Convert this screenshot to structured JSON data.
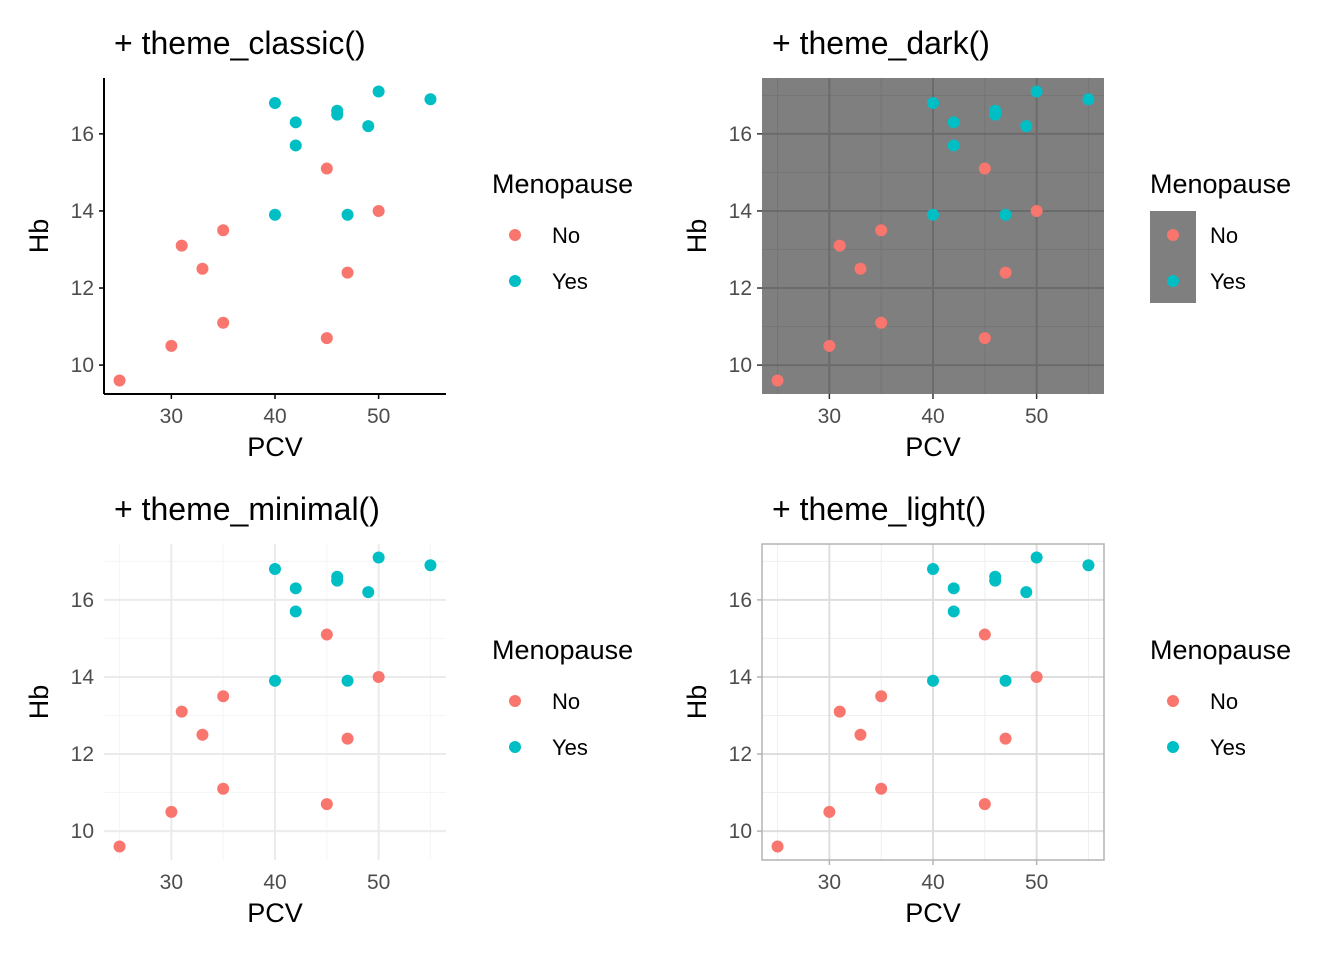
{
  "colors": {
    "No": "#F8766D",
    "Yes": "#00BFC4"
  },
  "chart_data": [
    {
      "type": "scatter",
      "title": "+ theme_classic()",
      "theme": "classic",
      "xlabel": "PCV",
      "ylabel": "Hb",
      "xlim": [
        23.5,
        56.5
      ],
      "ylim": [
        9.25,
        17.45
      ],
      "xticks": [
        30,
        40,
        50
      ],
      "yticks": [
        10,
        12,
        14,
        16
      ],
      "grid": false,
      "legend": {
        "title": "Menopause",
        "position": "right",
        "entries": [
          "No",
          "Yes"
        ]
      },
      "series": [
        {
          "name": "No",
          "color": "#F8766D",
          "points": [
            [
              25,
              9.6
            ],
            [
              30,
              10.5
            ],
            [
              31,
              13.1
            ],
            [
              33,
              12.5
            ],
            [
              35,
              11.1
            ],
            [
              35,
              13.5
            ],
            [
              45,
              10.7
            ],
            [
              45,
              15.1
            ],
            [
              47,
              12.4
            ],
            [
              50,
              14.0
            ]
          ]
        },
        {
          "name": "Yes",
          "color": "#00BFC4",
          "points": [
            [
              40,
              13.9
            ],
            [
              40,
              16.8
            ],
            [
              42,
              15.7
            ],
            [
              42,
              16.3
            ],
            [
              46,
              16.5
            ],
            [
              46,
              16.6
            ],
            [
              47,
              13.9
            ],
            [
              49,
              16.2
            ],
            [
              50,
              17.1
            ],
            [
              55,
              16.9
            ]
          ]
        }
      ]
    },
    {
      "type": "scatter",
      "title": "+ theme_dark()",
      "theme": "dark",
      "xlabel": "PCV",
      "ylabel": "Hb",
      "xlim": [
        23.5,
        56.5
      ],
      "ylim": [
        9.25,
        17.45
      ],
      "xticks": [
        30,
        40,
        50
      ],
      "yticks": [
        10,
        12,
        14,
        16
      ],
      "grid": true,
      "legend": {
        "title": "Menopause",
        "position": "right",
        "entries": [
          "No",
          "Yes"
        ]
      },
      "series": [
        {
          "name": "No",
          "color": "#F8766D",
          "points": [
            [
              25,
              9.6
            ],
            [
              30,
              10.5
            ],
            [
              31,
              13.1
            ],
            [
              33,
              12.5
            ],
            [
              35,
              11.1
            ],
            [
              35,
              13.5
            ],
            [
              45,
              10.7
            ],
            [
              45,
              15.1
            ],
            [
              47,
              12.4
            ],
            [
              50,
              14.0
            ]
          ]
        },
        {
          "name": "Yes",
          "color": "#00BFC4",
          "points": [
            [
              40,
              13.9
            ],
            [
              40,
              16.8
            ],
            [
              42,
              15.7
            ],
            [
              42,
              16.3
            ],
            [
              46,
              16.5
            ],
            [
              46,
              16.6
            ],
            [
              47,
              13.9
            ],
            [
              49,
              16.2
            ],
            [
              50,
              17.1
            ],
            [
              55,
              16.9
            ]
          ]
        }
      ]
    },
    {
      "type": "scatter",
      "title": "+ theme_minimal()",
      "theme": "minimal",
      "xlabel": "PCV",
      "ylabel": "Hb",
      "xlim": [
        23.5,
        56.5
      ],
      "ylim": [
        9.25,
        17.45
      ],
      "xticks": [
        30,
        40,
        50
      ],
      "yticks": [
        10,
        12,
        14,
        16
      ],
      "grid": true,
      "legend": {
        "title": "Menopause",
        "position": "right",
        "entries": [
          "No",
          "Yes"
        ]
      },
      "series": [
        {
          "name": "No",
          "color": "#F8766D",
          "points": [
            [
              25,
              9.6
            ],
            [
              30,
              10.5
            ],
            [
              31,
              13.1
            ],
            [
              33,
              12.5
            ],
            [
              35,
              11.1
            ],
            [
              35,
              13.5
            ],
            [
              45,
              10.7
            ],
            [
              45,
              15.1
            ],
            [
              47,
              12.4
            ],
            [
              50,
              14.0
            ]
          ]
        },
        {
          "name": "Yes",
          "color": "#00BFC4",
          "points": [
            [
              40,
              13.9
            ],
            [
              40,
              16.8
            ],
            [
              42,
              15.7
            ],
            [
              42,
              16.3
            ],
            [
              46,
              16.5
            ],
            [
              46,
              16.6
            ],
            [
              47,
              13.9
            ],
            [
              49,
              16.2
            ],
            [
              50,
              17.1
            ],
            [
              55,
              16.9
            ]
          ]
        }
      ]
    },
    {
      "type": "scatter",
      "title": "+ theme_light()",
      "theme": "light",
      "xlabel": "PCV",
      "ylabel": "Hb",
      "xlim": [
        23.5,
        56.5
      ],
      "ylim": [
        9.25,
        17.45
      ],
      "xticks": [
        30,
        40,
        50
      ],
      "yticks": [
        10,
        12,
        14,
        16
      ],
      "grid": true,
      "legend": {
        "title": "Menopause",
        "position": "right",
        "entries": [
          "No",
          "Yes"
        ]
      },
      "series": [
        {
          "name": "No",
          "color": "#F8766D",
          "points": [
            [
              25,
              9.6
            ],
            [
              30,
              10.5
            ],
            [
              31,
              13.1
            ],
            [
              33,
              12.5
            ],
            [
              35,
              11.1
            ],
            [
              35,
              13.5
            ],
            [
              45,
              10.7
            ],
            [
              45,
              15.1
            ],
            [
              47,
              12.4
            ],
            [
              50,
              14.0
            ]
          ]
        },
        {
          "name": "Yes",
          "color": "#00BFC4",
          "points": [
            [
              40,
              13.9
            ],
            [
              40,
              16.8
            ],
            [
              42,
              15.7
            ],
            [
              42,
              16.3
            ],
            [
              46,
              16.5
            ],
            [
              46,
              16.6
            ],
            [
              47,
              13.9
            ],
            [
              49,
              16.2
            ],
            [
              50,
              17.1
            ],
            [
              55,
              16.9
            ]
          ]
        }
      ]
    }
  ]
}
